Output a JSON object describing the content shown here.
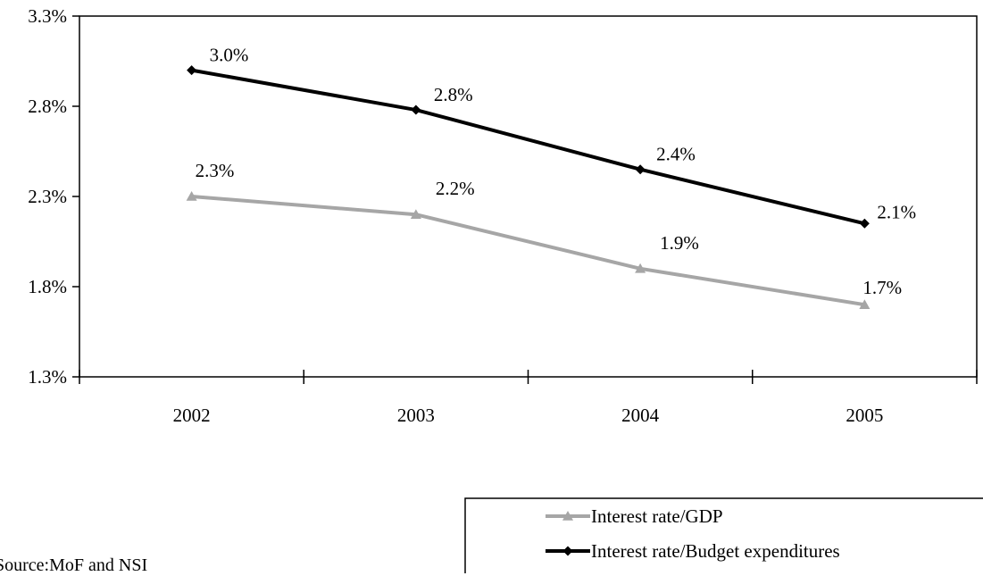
{
  "chart_data": {
    "type": "line",
    "categories": [
      "2002",
      "2003",
      "2004",
      "2005"
    ],
    "series": [
      {
        "name": "Interest rate/GDP",
        "values": [
          2.3,
          2.2,
          1.9,
          1.7
        ],
        "labels": [
          "2.3%",
          "2.2%",
          "1.9%",
          "1.7%"
        ],
        "color": "#a6a6a6",
        "marker": "triangle"
      },
      {
        "name": "Interest rate/Budget expenditures",
        "values": [
          3.0,
          2.78,
          2.45,
          2.15
        ],
        "labels": [
          "3.0%",
          "2.8%",
          "2.4%",
          "2.1%"
        ],
        "color": "#000000",
        "marker": "diamond"
      }
    ],
    "y_ticks": [
      1.3,
      1.8,
      2.3,
      2.8,
      3.3
    ],
    "y_tick_labels": [
      "1.3%",
      "1.8%",
      "2.3%",
      "2.8%",
      "3.3%"
    ],
    "ylim": [
      1.3,
      3.3
    ],
    "legend_position": "bottom-right",
    "grid": false
  },
  "source_note": "Source:MoF and NSI"
}
